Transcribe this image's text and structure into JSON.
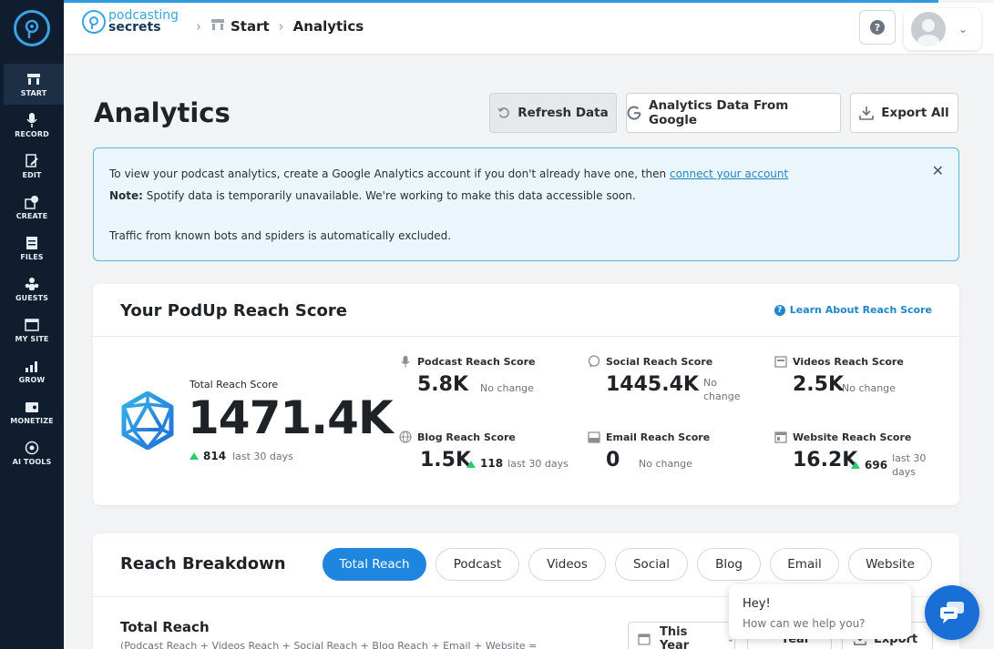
{
  "brand": {
    "line1": "podcasting",
    "line2": "secrets"
  },
  "breadcrumb": {
    "items": [
      "Start",
      "Analytics"
    ]
  },
  "sidebar": {
    "items": [
      {
        "label": "START",
        "icon": "start-icon"
      },
      {
        "label": "RECORD",
        "icon": "microphone-icon"
      },
      {
        "label": "EDIT",
        "icon": "edit-icon"
      },
      {
        "label": "CREATE",
        "icon": "create-icon"
      },
      {
        "label": "FILES",
        "icon": "files-icon"
      },
      {
        "label": "GUESTS",
        "icon": "guests-icon"
      },
      {
        "label": "MY SITE",
        "icon": "site-icon"
      },
      {
        "label": "GROW",
        "icon": "grow-icon"
      },
      {
        "label": "MONETIZE",
        "icon": "monetize-icon"
      },
      {
        "label": "AI TOOLS",
        "icon": "ai-icon"
      }
    ]
  },
  "page": {
    "title": "Analytics"
  },
  "toolbar": {
    "refresh_label": "Refresh Data",
    "google_label": "Analytics Data From Google",
    "export_label": "Export All"
  },
  "notice": {
    "line1_text": "To view your podcast analytics, create a Google Analytics account if you don't already have one, then ",
    "line1_link": "connect your account",
    "line2_bold": "Note:",
    "line2_text": " Spotify data is temporarily unavailable. We're working to make this data accessible soon.",
    "line3_text": "Traffic from known bots and spiders is automatically excluded."
  },
  "reach": {
    "title": "Your PodUp Reach Score",
    "learn_label": "Learn About Reach Score",
    "total": {
      "label": "Total Reach Score",
      "value": "1471.4K",
      "change": "814",
      "period": "last 30 days"
    },
    "metrics": [
      {
        "label": "Podcast Reach Score",
        "value": "5.8K",
        "side": "No change"
      },
      {
        "label": "Social Reach Score",
        "value": "1445.4K",
        "side1": "No",
        "side2": "change"
      },
      {
        "label": "Videos Reach Score",
        "value": "2.5K",
        "side": "No change"
      },
      {
        "label": "Blog Reach Score",
        "value": "1.5K",
        "change": "118",
        "side": "last 30 days"
      },
      {
        "label": "Email Reach Score",
        "value": "0",
        "side": "No change"
      },
      {
        "label": "Website Reach Score",
        "value": "16.2K",
        "change": "696",
        "side1": "last 30",
        "side2": "days"
      }
    ]
  },
  "breakdown": {
    "title": "Reach Breakdown",
    "tabs": [
      "Total Reach",
      "Podcast",
      "Videos",
      "Social",
      "Blog",
      "Email",
      "Website"
    ],
    "sub_title": "Total Reach",
    "sub_desc": "(Podcast Reach + Videos Reach + Social Reach + Blog Reach + Email + Website =",
    "range_label": "This Year",
    "group_label": "Year",
    "export_label": "Export"
  },
  "chat": {
    "greeting": "Hey!",
    "prompt": "How can we help you?"
  },
  "colors": {
    "sidebar": "#0f1d2e",
    "accent": "#1f86e0",
    "notice_border": "#58b6df",
    "up": "#2ecc71"
  }
}
